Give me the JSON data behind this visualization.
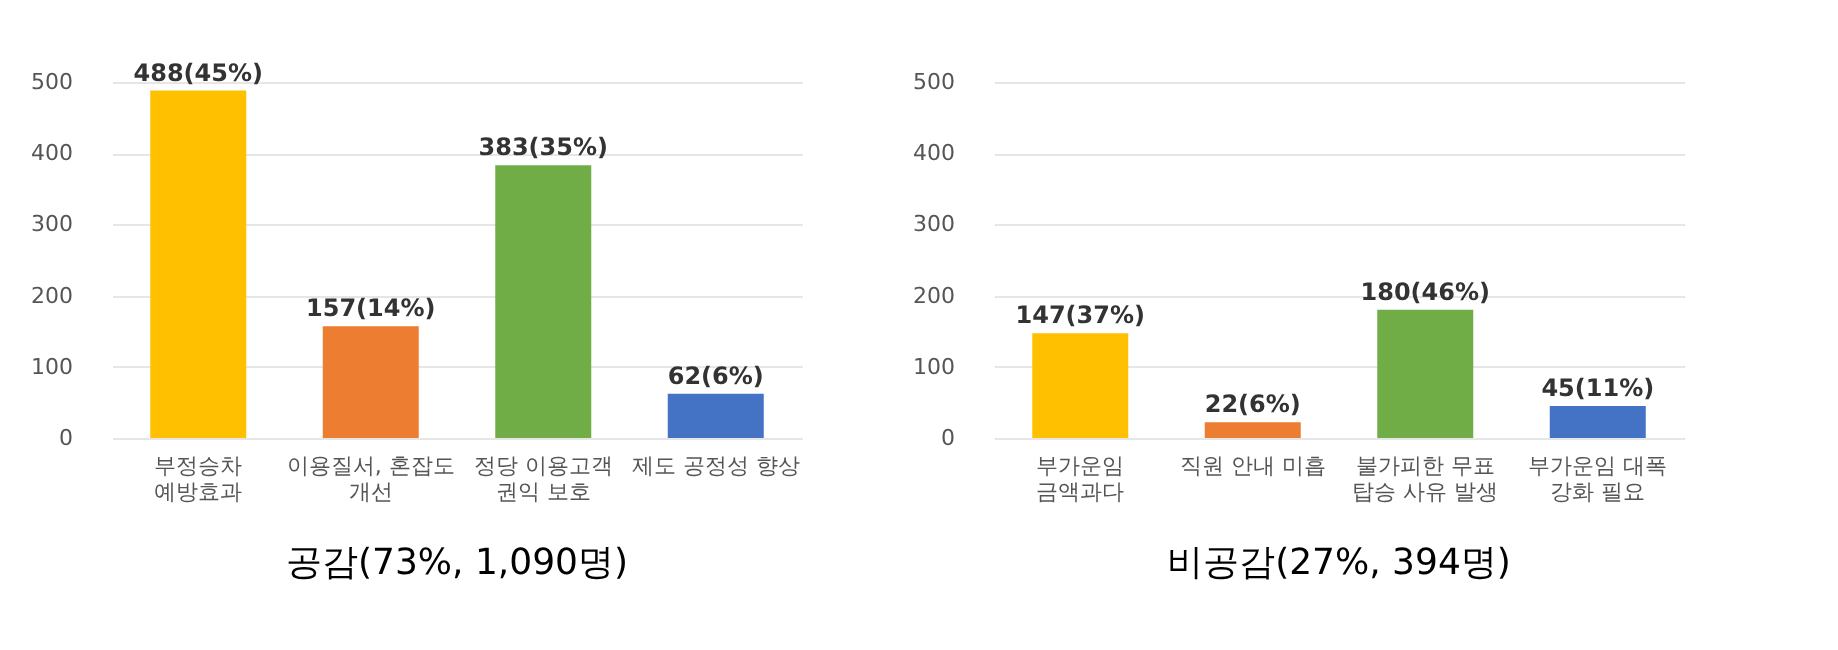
{
  "chart_data": [
    {
      "type": "bar",
      "title": "공감(73%, 1,090명)",
      "categories": [
        "부정승차\n예방효과",
        "이용질서, 혼잡도\n개선",
        "정당 이용고객\n권익 보호",
        "제도 공정성 향상"
      ],
      "values": [
        488,
        157,
        383,
        62
      ],
      "colors": [
        "#ffc000",
        "#ed7d31",
        "#70ad47",
        "#4472c4"
      ],
      "value_labels": [
        "488(45%)",
        "157(14%)",
        "383(35%)",
        "62(6%)"
      ],
      "ylim": [
        0,
        500
      ],
      "yticks": [
        0,
        100,
        200,
        300,
        400,
        500
      ],
      "grid": "y"
    },
    {
      "type": "bar",
      "title": "비공감(27%, 394명)",
      "categories": [
        "부가운임\n금액과다",
        "직원 안내 미흡",
        "불가피한 무표\n탑승 사유 발생",
        "부가운임 대폭\n강화 필요"
      ],
      "values": [
        147,
        22,
        180,
        45
      ],
      "colors": [
        "#ffc000",
        "#ed7d31",
        "#70ad47",
        "#4472c4"
      ],
      "value_labels": [
        "147(37%)",
        "22(6%)",
        "180(46%)",
        "45(11%)"
      ],
      "ylim": [
        0,
        500
      ],
      "yticks": [
        0,
        100,
        200,
        300,
        400,
        500
      ],
      "grid": "y"
    }
  ]
}
